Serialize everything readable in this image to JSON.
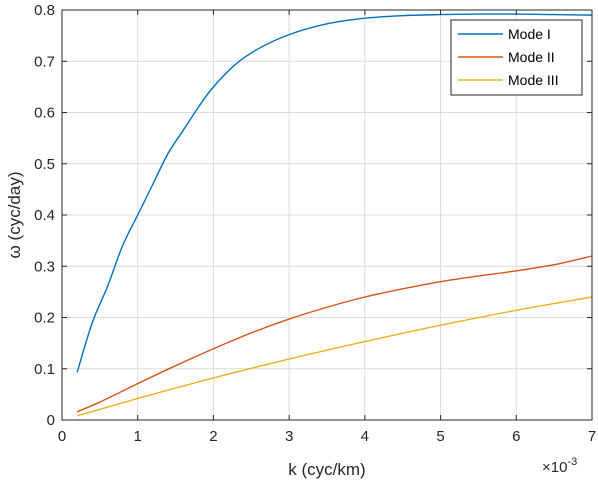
{
  "chart_data": {
    "type": "line",
    "xlabel": "k (cyc/km)",
    "ylabel": "ω (cyc/day)",
    "x_exponent_base": "×10",
    "x_exponent_power": "-3",
    "xlim": [
      0,
      7
    ],
    "ylim": [
      0,
      0.8
    ],
    "xticks": [
      "0",
      "1",
      "2",
      "3",
      "4",
      "5",
      "6",
      "7"
    ],
    "yticks": [
      "0",
      "0.1",
      "0.2",
      "0.3",
      "0.4",
      "0.5",
      "0.6",
      "0.7",
      "0.8"
    ],
    "grid": true,
    "legend_position": "top-right",
    "series": [
      {
        "name": "Mode I",
        "color": "#0072BD",
        "x": [
          0.2,
          0.4,
          0.6,
          0.8,
          1.0,
          1.2,
          1.4,
          1.6,
          1.8,
          2.0,
          2.3,
          2.6,
          3.0,
          3.5,
          4.0,
          4.5,
          5.0,
          5.5,
          6.0,
          6.5,
          7.0
        ],
        "y": [
          0.093,
          0.19,
          0.26,
          0.34,
          0.4,
          0.46,
          0.52,
          0.565,
          0.61,
          0.65,
          0.695,
          0.725,
          0.752,
          0.773,
          0.784,
          0.789,
          0.791,
          0.792,
          0.792,
          0.791,
          0.79
        ]
      },
      {
        "name": "Mode II",
        "color": "#D95319",
        "x": [
          0.2,
          0.5,
          1.0,
          1.5,
          2.0,
          2.5,
          3.0,
          3.5,
          4.0,
          4.5,
          5.0,
          5.5,
          6.0,
          6.5,
          7.0
        ],
        "y": [
          0.016,
          0.035,
          0.071,
          0.106,
          0.139,
          0.17,
          0.197,
          0.22,
          0.24,
          0.256,
          0.27,
          0.281,
          0.291,
          0.303,
          0.32
        ]
      },
      {
        "name": "Mode III",
        "color": "#EDB120",
        "x": [
          0.2,
          1.0,
          2.0,
          3.0,
          4.0,
          5.0,
          6.0,
          7.0
        ],
        "y": [
          0.008,
          0.042,
          0.082,
          0.119,
          0.153,
          0.185,
          0.214,
          0.24
        ]
      }
    ]
  }
}
